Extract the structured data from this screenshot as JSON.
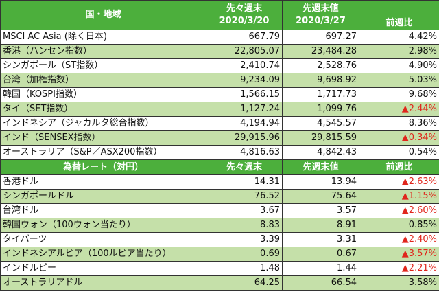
{
  "colors": {
    "header_bg": "#4caf3c",
    "alt_row_bg": "#c5e0a9",
    "negative": "#e0261c"
  },
  "indices": {
    "header": {
      "region": "国・地域",
      "prev2_label": "先々週末",
      "prev2_date": "2020/3/20",
      "prev_label": "先週末値",
      "prev_date": "2020/3/27",
      "change": "前週比"
    },
    "rows": [
      {
        "name": "MSCI AC Asia (除く日本)",
        "prev2": "667.79",
        "prev": "697.27",
        "change": "4.42%",
        "negative": false
      },
      {
        "name": "香港（ハンセン指数）",
        "prev2": "22,805.07",
        "prev": "23,484.28",
        "change": "2.98%",
        "negative": false
      },
      {
        "name": "シンガポール（ST指数）",
        "prev2": "2,410.74",
        "prev": "2,528.76",
        "change": "4.90%",
        "negative": false
      },
      {
        "name": "台湾（加権指数）",
        "prev2": "9,234.09",
        "prev": "9,698.92",
        "change": "5.03%",
        "negative": false
      },
      {
        "name": "韓国（KOSPI指数）",
        "prev2": "1,566.15",
        "prev": "1,717.73",
        "change": "9.68%",
        "negative": false
      },
      {
        "name": "タイ（SET指数）",
        "prev2": "1,127.24",
        "prev": "1,099.76",
        "change": "▲2.44%",
        "negative": true
      },
      {
        "name": "インドネシア（ジャカルタ総合指数）",
        "prev2": "4,194.94",
        "prev": "4,545.57",
        "change": "8.36%",
        "negative": false
      },
      {
        "name": "インド（SENSEX指数）",
        "prev2": "29,915.96",
        "prev": "29,815.59",
        "change": "▲0.34%",
        "negative": true
      },
      {
        "name": "オーストラリア（S&P／ASX200指数）",
        "prev2": "4,816.63",
        "prev": "4,842.43",
        "change": "0.54%",
        "negative": false
      }
    ]
  },
  "fx": {
    "header": {
      "region": "為替レート（対円）",
      "prev2_label": "先々週末",
      "prev_label": "先週末値",
      "change": "前週比"
    },
    "rows": [
      {
        "name": "香港ドル",
        "prev2": "14.31",
        "prev": "13.94",
        "change": "▲2.63%",
        "negative": true
      },
      {
        "name": "シンガポールドル",
        "prev2": "76.52",
        "prev": "75.64",
        "change": "▲1.15%",
        "negative": true
      },
      {
        "name": "台湾ドル",
        "prev2": "3.67",
        "prev": "3.57",
        "change": "▲2.60%",
        "negative": true
      },
      {
        "name": "韓国ウォン（100ウォン当たり）",
        "prev2": "8.83",
        "prev": "8.91",
        "change": "0.85%",
        "negative": false
      },
      {
        "name": "タイバーツ",
        "prev2": "3.39",
        "prev": "3.31",
        "change": "▲2.40%",
        "negative": true
      },
      {
        "name": "インドネシアルピア（100ルピア当たり）",
        "prev2": "0.69",
        "prev": "0.67",
        "change": "▲3.57%",
        "negative": true
      },
      {
        "name": "インドルピー",
        "prev2": "1.48",
        "prev": "1.44",
        "change": "▲2.21%",
        "negative": true
      },
      {
        "name": "オーストラリアドル",
        "prev2": "64.25",
        "prev": "66.54",
        "change": "3.58%",
        "negative": false
      }
    ]
  }
}
